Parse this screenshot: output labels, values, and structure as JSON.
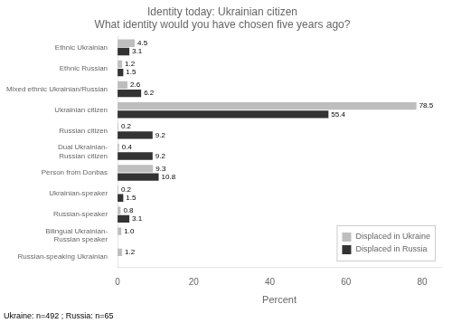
{
  "chart_data": {
    "type": "bar",
    "orientation": "horizontal",
    "title": "Identity today: Ukrainian citizen\nWhat identity would you have chosen five years ago?",
    "xlabel": "Percent",
    "footnote": "Ukraine: n=492 ; Russia: n=65",
    "categories": [
      "Russian-speaking Ukrainian",
      "Bilingual Ukrainian-\nRussian speaker",
      "Russian-speaker",
      "Ukrainian-speaker",
      "Person from Donbas",
      "Dual Ukrainian-\nRussian citizen",
      "Russian citizen",
      "Ukrainian citizen",
      "Mixed ethnic Ukrainian/Russian",
      "Ethnic Russian",
      "Ethnic Ukrainian"
    ],
    "series": [
      {
        "name": "Displaced in Ukraine",
        "color": "#BEBEBE",
        "values": [
          1.2,
          1.0,
          0.8,
          0.2,
          9.3,
          0.4,
          0.2,
          78.5,
          2.6,
          1.2,
          4.5
        ],
        "value_labels": [
          "1.2",
          "1.0",
          "0.8",
          "0.2",
          "9.3",
          "0.4",
          "0.2",
          "78.5",
          "2.6",
          "1.2",
          "4.5"
        ]
      },
      {
        "name": "Displaced in Russia",
        "color": "#333333",
        "values": [
          0.0,
          0.0,
          3.1,
          1.5,
          10.8,
          9.2,
          9.2,
          55.4,
          6.2,
          1.5,
          3.1
        ],
        "value_labels": [
          null,
          null,
          "3.1",
          "1.5",
          "10.8",
          "9.2",
          "9.2",
          "55.4",
          "6.2",
          "1.5",
          "3.1"
        ]
      }
    ],
    "xlim": [
      0,
      85
    ],
    "xticks": [
      0,
      20,
      40,
      60,
      80
    ],
    "data_labels": true,
    "legend": "lower right",
    "grid": false
  }
}
